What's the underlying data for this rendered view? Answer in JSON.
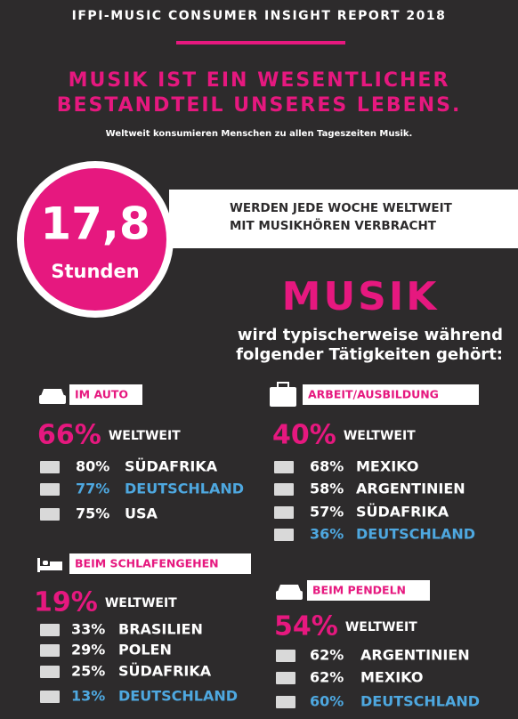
{
  "header": {
    "title": "IFPI-MUSIC CONSUMER INSIGHT REPORT 2018"
  },
  "headline": {
    "lines": [
      "MUSIK IST EIN WESENTLICHER",
      "BESTANDTEIL UNSERES LEBENS."
    ],
    "subtitle": "Weltweit konsumieren Menschen zu allen Tageszeiten Musik."
  },
  "highlight": {
    "number": "17,8",
    "unit": "Stunden",
    "lines": [
      "WERDEN JEDE WOCHE WELTWEIT",
      "MIT MUSIKHÖREN VERBRACHT"
    ]
  },
  "intro": {
    "word": "MUSIK",
    "lines": [
      "wird typischerweise während",
      "folgender Tätigkeiten gehört:"
    ]
  },
  "sections": [
    {
      "label": "IM AUTO",
      "global": "66%",
      "global_label": "WELTWEIT",
      "rows": [
        {
          "pct": "80%",
          "country": "SÜDAFRIKA",
          "color": "#ffffff"
        },
        {
          "pct": "77%",
          "country": "DEUTSCHLAND",
          "color": "#4ea8e0"
        },
        {
          "pct": "75%",
          "country": "USA",
          "color": "#ffffff"
        }
      ]
    },
    {
      "label": "ARBEIT/AUSBILDUNG",
      "global": "40%",
      "global_label": "WELTWEIT",
      "rows": [
        {
          "pct": "68%",
          "country": "MEXIKO",
          "color": "#ffffff"
        },
        {
          "pct": "58%",
          "country": "ARGENTINIEN",
          "color": "#ffffff"
        },
        {
          "pct": "57%",
          "country": "SÜDAFRIKA",
          "color": "#ffffff"
        },
        {
          "pct": "36%",
          "country": "DEUTSCHLAND",
          "color": "#4ea8e0"
        }
      ]
    },
    {
      "label": "BEIM SCHLAFENGEHEN",
      "global": "19%",
      "global_label": "WELTWEIT",
      "rows": [
        {
          "pct": "33%",
          "country": "BRASILIEN",
          "color": "#ffffff"
        },
        {
          "pct": "29%",
          "country": "POLEN",
          "color": "#ffffff"
        },
        {
          "pct": "25%",
          "country": "SÜDAFRIKA",
          "color": "#ffffff"
        },
        {
          "pct": "13%",
          "country": "DEUTSCHLAND",
          "color": "#4ea8e0"
        }
      ]
    },
    {
      "label": "BEIM PENDELN",
      "global": "54%",
      "global_label": "WELTWEIT",
      "rows": [
        {
          "pct": "62%",
          "country": "ARGENTINIEN",
          "color": "#ffffff"
        },
        {
          "pct": "62%",
          "country": "MEXIKO",
          "color": "#ffffff"
        },
        {
          "pct": "60%",
          "country": "DEUTSCHLAND",
          "color": "#4ea8e0"
        }
      ]
    }
  ]
}
